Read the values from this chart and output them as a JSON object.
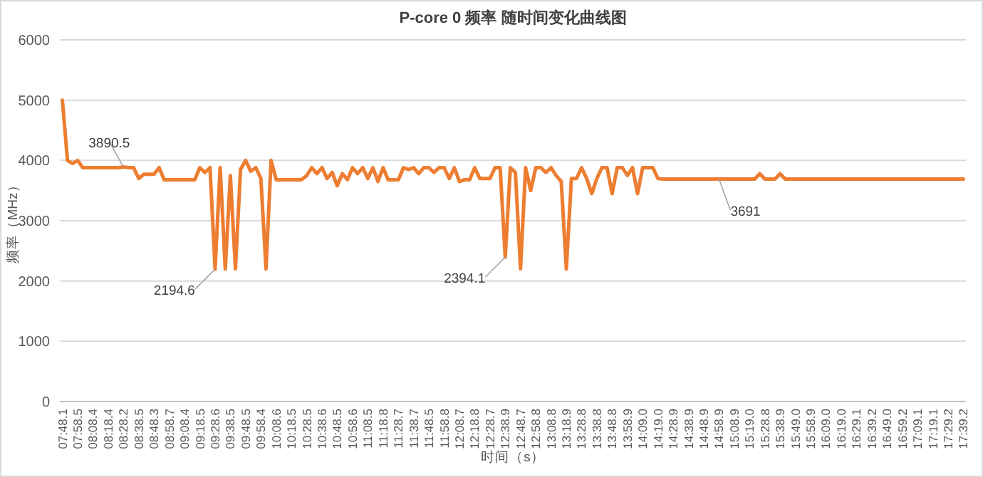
{
  "chart_data": {
    "type": "line",
    "title": "P-core 0 频率 随时间变化曲线图",
    "xlabel": "时间（s）",
    "ylabel": "频率（MHz）",
    "categories": [
      "07:48.1",
      null,
      null,
      "07:58.5",
      null,
      null,
      "08:08.4",
      null,
      null,
      "08:18.4",
      null,
      null,
      "08:28.2",
      null,
      null,
      "08:38.5",
      null,
      null,
      "08:48.3",
      null,
      null,
      "08:58.7",
      null,
      null,
      "09:08.4",
      null,
      null,
      "09:18.5",
      null,
      null,
      "09:28.6",
      null,
      null,
      "09:38.5",
      null,
      null,
      "09:48.5",
      null,
      null,
      "09:58.4",
      null,
      null,
      "10:08.6",
      null,
      null,
      "10:18.5",
      null,
      null,
      "10:28.5",
      null,
      null,
      "10:38.6",
      null,
      null,
      "10:48.5",
      null,
      null,
      "10:58.6",
      null,
      null,
      "11:08.5",
      null,
      null,
      "11:18.8",
      null,
      null,
      "11:28.7",
      null,
      null,
      "11:38.7",
      null,
      null,
      "11:48.5",
      null,
      null,
      "11:58.8",
      null,
      null,
      "12:08.7",
      null,
      null,
      "12:18.8",
      null,
      null,
      "12:28.7",
      null,
      null,
      "12:38.9",
      null,
      null,
      "12:48.7",
      null,
      null,
      "12:58.8",
      null,
      null,
      "13:08.8",
      null,
      null,
      "13:18.9",
      null,
      null,
      "13:28.8",
      null,
      null,
      "13:38.8",
      null,
      null,
      "13:48.8",
      null,
      null,
      "13:58.9",
      null,
      null,
      "14:09.0",
      null,
      null,
      "14:19.0",
      null,
      null,
      "14:28.9",
      null,
      null,
      "14:38.9",
      null,
      null,
      "14:48.9",
      null,
      null,
      "14:58.9",
      null,
      null,
      "15:08.9",
      null,
      null,
      "15:19.0",
      null,
      null,
      "15:28.8",
      null,
      null,
      "15:38.9",
      null,
      null,
      "15:49.0",
      null,
      null,
      "15:58.9",
      null,
      null,
      "16:09.0",
      null,
      null,
      "16:19.0",
      null,
      null,
      "16:29.1",
      null,
      null,
      "16:39.2",
      null,
      null,
      "16:49.0",
      null,
      null,
      "16:59.2",
      null,
      null,
      "17:09.1",
      null,
      null,
      "17:19.1",
      null,
      null,
      "17:29.2",
      null,
      null,
      "17:39.2"
    ],
    "series": [
      {
        "color": "#ed7d31",
        "values": [
          5000,
          4000,
          3950,
          4000,
          3880,
          3880,
          3880,
          3880,
          3880,
          3880,
          3880,
          3880,
          3890.5,
          3880,
          3880,
          3700,
          3770,
          3770,
          3770,
          3880,
          3680,
          3680,
          3680,
          3680,
          3680,
          3680,
          3680,
          3880,
          3800,
          3880,
          2194.6,
          3880,
          2200,
          3750,
          2200,
          3850,
          4000,
          3820,
          3880,
          3700,
          2200,
          4000,
          3680,
          3680,
          3680,
          3680,
          3680,
          3680,
          3750,
          3880,
          3780,
          3880,
          3700,
          3800,
          3580,
          3780,
          3680,
          3880,
          3780,
          3880,
          3700,
          3880,
          3650,
          3880,
          3680,
          3680,
          3680,
          3880,
          3850,
          3880,
          3780,
          3880,
          3880,
          3800,
          3880,
          3880,
          3700,
          3880,
          3650,
          3680,
          3680,
          3880,
          3700,
          3700,
          3700,
          3880,
          3880,
          2394.1,
          3880,
          3800,
          2200,
          3880,
          3500,
          3880,
          3880,
          3800,
          3880,
          3750,
          3650,
          2200,
          3700,
          3700,
          3880,
          3700,
          3450,
          3700,
          3880,
          3880,
          3450,
          3880,
          3880,
          3750,
          3880,
          3450,
          3880,
          3880,
          3880,
          3700,
          3691,
          3691,
          3691,
          3691,
          3691,
          3691,
          3691,
          3691,
          3691,
          3691,
          3691,
          3691,
          3691,
          3691,
          3691,
          3691,
          3691,
          3691,
          3691,
          3780,
          3691,
          3691,
          3691,
          3780,
          3691,
          3691,
          3691,
          3691,
          3691,
          3691,
          3691,
          3691,
          3691,
          3691,
          3691,
          3691,
          3691,
          3691,
          3691,
          3691,
          3691,
          3691,
          3691,
          3691,
          3691,
          3691,
          3691,
          3691,
          3691,
          3691,
          3691,
          3691,
          3691,
          3691,
          3691,
          3691,
          3691,
          3691,
          3691,
          3691
        ]
      }
    ],
    "ylim": [
      0,
      6000
    ],
    "yticks": [
      0,
      1000,
      2000,
      3000,
      4000,
      5000,
      6000
    ],
    "grid": "y",
    "annotations": [
      {
        "text": "3890.5",
        "x": "08:28.2",
        "y": 3890.5
      },
      {
        "text": "2194.6",
        "x": "09:28.6",
        "y": 2194.6
      },
      {
        "text": "2394.1",
        "x": "12:38.9",
        "y": 2394.1
      },
      {
        "text": "3691",
        "x": "14:58.9",
        "y": 3691
      }
    ]
  }
}
